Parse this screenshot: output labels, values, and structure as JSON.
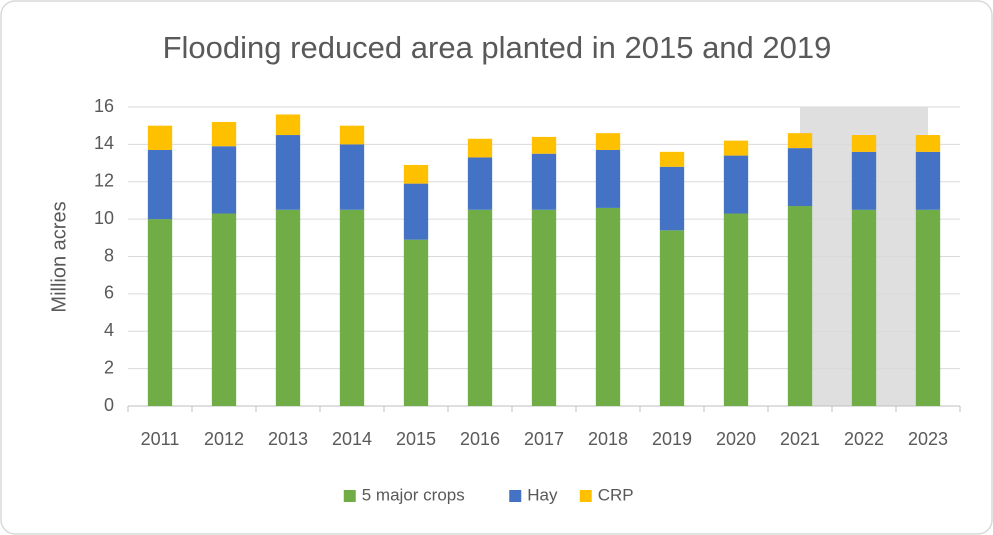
{
  "chart_data": {
    "type": "stacked_bar",
    "title": "Flooding reduced area planted in 2015 and 2019",
    "y_label": "Million acres",
    "categories": [
      "2011",
      "2012",
      "2013",
      "2014",
      "2015",
      "2016",
      "2017",
      "2018",
      "2019",
      "2020",
      "2021",
      "2022",
      "2023"
    ],
    "series": [
      {
        "name": "5 major crops",
        "color": "#70ad47",
        "values": [
          10.0,
          10.3,
          10.5,
          10.5,
          8.9,
          10.5,
          10.5,
          10.6,
          9.4,
          10.3,
          10.7,
          10.5,
          10.5
        ]
      },
      {
        "name": "Hay",
        "color": "#4472c4",
        "values": [
          3.7,
          3.6,
          4.0,
          3.5,
          3.0,
          2.8,
          3.0,
          3.1,
          3.4,
          3.1,
          3.1,
          3.1,
          3.1
        ]
      },
      {
        "name": "CRP",
        "color": "#ffc000",
        "values": [
          1.3,
          1.3,
          1.1,
          1.0,
          1.0,
          1.0,
          0.9,
          0.9,
          0.8,
          0.8,
          0.8,
          0.9,
          0.9
        ]
      }
    ],
    "ylim": [
      0,
      16
    ],
    "yticks": [
      0,
      2,
      4,
      6,
      8,
      10,
      12,
      14,
      16
    ],
    "grid": true,
    "legend": "bottom"
  }
}
